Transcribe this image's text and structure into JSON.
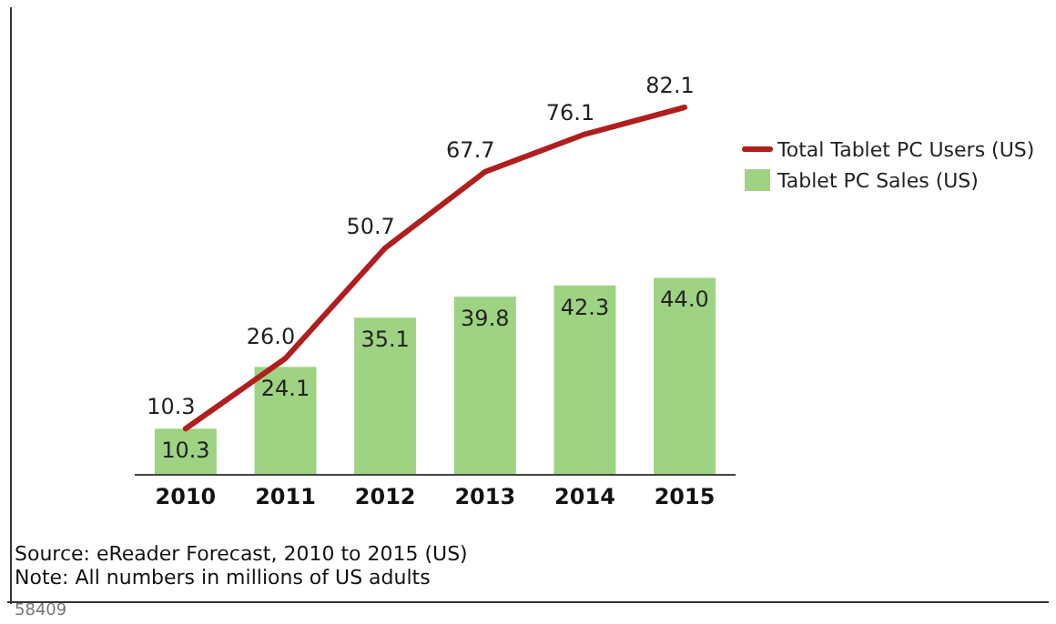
{
  "chart_data": {
    "type": "bar",
    "categories": [
      "2010",
      "2011",
      "2012",
      "2013",
      "2014",
      "2015"
    ],
    "series": [
      {
        "name": "Total Tablet PC Users (US)",
        "type": "line",
        "color": "#b01e1e",
        "values": [
          10.3,
          26.0,
          50.7,
          67.7,
          76.1,
          82.1
        ],
        "value_labels": [
          "10.3",
          "26.0",
          "50.7",
          "67.7",
          "76.1",
          "82.1"
        ]
      },
      {
        "name": "Tablet PC Sales (US)",
        "color": "#9dd383",
        "values": [
          10.3,
          24.1,
          35.1,
          39.8,
          42.3,
          44.0
        ],
        "value_labels": [
          "10.3",
          "24.1",
          "35.1",
          "39.8",
          "42.3",
          "44.0"
        ]
      }
    ],
    "legend": "right",
    "annotations": [
      "Source: eReader Forecast, 2010 to 2015 (US)",
      "Note: All numbers in millions of US adults",
      "58409"
    ]
  }
}
